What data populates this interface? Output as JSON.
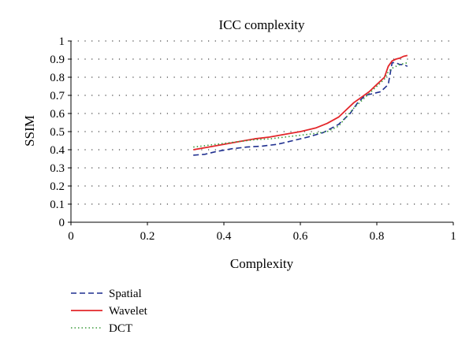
{
  "chart_data": {
    "type": "line",
    "title": "ICC complexity",
    "xlabel": "Complexity",
    "ylabel": "SSIM",
    "xlim": [
      0,
      1
    ],
    "ylim": [
      0,
      1
    ],
    "x_ticks": [
      0,
      0.2,
      0.4,
      0.6,
      0.8,
      1
    ],
    "x_tick_labels": [
      "0",
      "0.2",
      "0.4",
      "0.6",
      "0.8",
      "1"
    ],
    "y_ticks": [
      0,
      0.1,
      0.2,
      0.3,
      0.4,
      0.5,
      0.6,
      0.7,
      0.8,
      0.9,
      1
    ],
    "y_tick_labels": [
      "0",
      "0.1",
      "0.2",
      "0.3",
      "0.4",
      "0.5",
      "0.6",
      "0.7",
      "0.8",
      "0.9",
      "1"
    ],
    "grid": "horizontal dotted",
    "legend_position": "bottom-left",
    "series": [
      {
        "name": "Spatial",
        "color": "#1f2f8f",
        "style": "dashed",
        "x": [
          0.32,
          0.35,
          0.38,
          0.42,
          0.46,
          0.5,
          0.54,
          0.58,
          0.62,
          0.66,
          0.7,
          0.73,
          0.75,
          0.77,
          0.79,
          0.81,
          0.82,
          0.83,
          0.84,
          0.85,
          0.86,
          0.87,
          0.88
        ],
        "y": [
          0.37,
          0.375,
          0.39,
          0.405,
          0.415,
          0.42,
          0.43,
          0.45,
          0.47,
          0.495,
          0.54,
          0.6,
          0.66,
          0.7,
          0.71,
          0.72,
          0.74,
          0.76,
          0.88,
          0.88,
          0.87,
          0.87,
          0.86
        ]
      },
      {
        "name": "Wavelet",
        "color": "#e3262a",
        "style": "solid",
        "x": [
          0.32,
          0.36,
          0.4,
          0.44,
          0.48,
          0.52,
          0.56,
          0.6,
          0.64,
          0.67,
          0.7,
          0.72,
          0.74,
          0.76,
          0.78,
          0.8,
          0.82,
          0.83,
          0.84,
          0.85,
          0.86,
          0.87,
          0.88
        ],
        "y": [
          0.4,
          0.415,
          0.43,
          0.445,
          0.46,
          0.47,
          0.485,
          0.5,
          0.52,
          0.545,
          0.58,
          0.62,
          0.66,
          0.69,
          0.72,
          0.76,
          0.8,
          0.86,
          0.89,
          0.9,
          0.905,
          0.915,
          0.92
        ]
      },
      {
        "name": "DCT",
        "color": "#3b9a3b",
        "style": "dotted",
        "x": [
          0.32,
          0.36,
          0.4,
          0.44,
          0.48,
          0.52,
          0.56,
          0.6,
          0.64,
          0.67,
          0.7,
          0.72,
          0.74,
          0.76,
          0.78,
          0.8,
          0.82,
          0.83,
          0.84,
          0.85,
          0.86,
          0.87,
          0.88
        ],
        "y": [
          0.415,
          0.425,
          0.435,
          0.445,
          0.455,
          0.46,
          0.47,
          0.48,
          0.49,
          0.5,
          0.53,
          0.58,
          0.63,
          0.67,
          0.71,
          0.75,
          0.79,
          0.83,
          0.85,
          0.86,
          0.87,
          0.875,
          0.88
        ]
      }
    ]
  }
}
